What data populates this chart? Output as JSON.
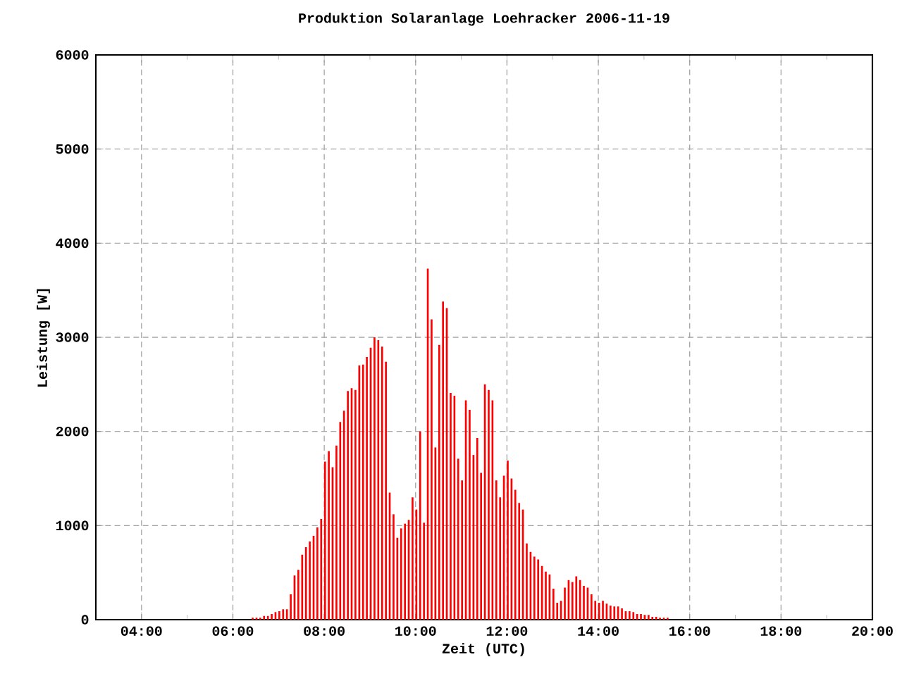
{
  "chart_data": {
    "type": "bar",
    "title": "Produktion Solaranlage Loehracker 2006-11-19",
    "xlabel": "Zeit (UTC)",
    "ylabel": "Leistung [W]",
    "x": [
      6.433,
      6.517,
      6.6,
      6.683,
      6.767,
      6.85,
      6.933,
      7.017,
      7.1,
      7.183,
      7.267,
      7.35,
      7.433,
      7.517,
      7.6,
      7.683,
      7.767,
      7.85,
      7.933,
      8.017,
      8.1,
      8.183,
      8.267,
      8.35,
      8.433,
      8.517,
      8.6,
      8.683,
      8.767,
      8.85,
      8.933,
      9.017,
      9.1,
      9.183,
      9.267,
      9.35,
      9.433,
      9.517,
      9.6,
      9.683,
      9.767,
      9.85,
      9.933,
      10.017,
      10.1,
      10.183,
      10.267,
      10.35,
      10.433,
      10.517,
      10.6,
      10.683,
      10.767,
      10.85,
      10.933,
      11.017,
      11.1,
      11.183,
      11.267,
      11.35,
      11.433,
      11.517,
      11.6,
      11.683,
      11.767,
      11.85,
      11.933,
      12.017,
      12.1,
      12.183,
      12.267,
      12.35,
      12.433,
      12.517,
      12.6,
      12.683,
      12.767,
      12.85,
      12.933,
      13.017,
      13.1,
      13.183,
      13.267,
      13.35,
      13.433,
      13.517,
      13.6,
      13.683,
      13.767,
      13.85,
      13.933,
      14.017,
      14.1,
      14.183,
      14.267,
      14.35,
      14.433,
      14.517,
      14.6,
      14.683,
      14.767,
      14.85,
      14.933,
      15.017,
      15.1,
      15.183,
      15.267,
      15.35,
      15.433,
      15.517
    ],
    "series": [
      {
        "color": "#ff0000",
        "values": [
          20,
          20,
          20,
          40,
          40,
          60,
          80,
          90,
          110,
          110,
          270,
          470,
          530,
          690,
          770,
          830,
          890,
          980,
          1070,
          1680,
          1790,
          1620,
          1850,
          2100,
          2220,
          2430,
          2460,
          2440,
          2700,
          2710,
          2790,
          2890,
          3000,
          2970,
          2900,
          2740,
          1350,
          1120,
          870,
          970,
          1020,
          1060,
          1300,
          1170,
          2000,
          1030,
          3730,
          3190,
          1830,
          2920,
          3380,
          3310,
          2410,
          2380,
          1710,
          1480,
          2330,
          2230,
          1750,
          1930,
          1560,
          2500,
          2440,
          2330,
          1480,
          1300,
          1530,
          1690,
          1500,
          1380,
          1240,
          1170,
          810,
          720,
          670,
          640,
          570,
          510,
          480,
          330,
          180,
          200,
          340,
          420,
          400,
          460,
          420,
          360,
          340,
          270,
          200,
          180,
          200,
          170,
          150,
          140,
          140,
          120,
          90,
          90,
          80,
          60,
          60,
          50,
          50,
          30,
          30,
          20,
          20,
          20
        ]
      }
    ],
    "xlim": [
      3,
      20
    ],
    "xticks": [
      {
        "value": 4,
        "label": "04:00"
      },
      {
        "value": 5,
        "label": null
      },
      {
        "value": 6,
        "label": "06:00"
      },
      {
        "value": 7,
        "label": null
      },
      {
        "value": 8,
        "label": "08:00"
      },
      {
        "value": 9,
        "label": null
      },
      {
        "value": 10,
        "label": "10:00"
      },
      {
        "value": 11,
        "label": null
      },
      {
        "value": 12,
        "label": "12:00"
      },
      {
        "value": 13,
        "label": null
      },
      {
        "value": 14,
        "label": "14:00"
      },
      {
        "value": 15,
        "label": null
      },
      {
        "value": 16,
        "label": "16:00"
      },
      {
        "value": 17,
        "label": null
      },
      {
        "value": 18,
        "label": "18:00"
      },
      {
        "value": 19,
        "label": null
      },
      {
        "value": 20,
        "label": "20:00"
      }
    ],
    "ylim": [
      0,
      6000
    ],
    "yticks": [
      0,
      1000,
      2000,
      3000,
      4000,
      5000,
      6000
    ],
    "grid": true
  }
}
